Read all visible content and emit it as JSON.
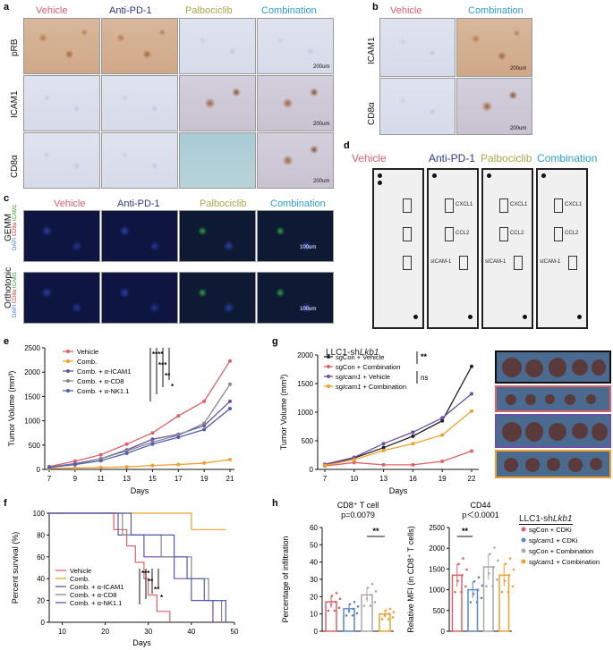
{
  "colors": {
    "vehicle": "#e0606a",
    "anti_pd1": "#2c3a86",
    "palbociclib": "#a8a84a",
    "combination": "#2e9ed6",
    "purple": "#6b4fa8",
    "grey": "#777777",
    "orange": "#f0a030"
  },
  "panels": {
    "a": {
      "label": "a",
      "columns": [
        "Vehicle",
        "Anti-PD-1",
        "Palbociclib",
        "Combination"
      ],
      "rows": [
        "pRB",
        "ICAM1",
        "CD8α"
      ],
      "scale": "200um"
    },
    "b": {
      "label": "b",
      "columns": [
        "Vehicle",
        "Combination"
      ],
      "rows": [
        "ICAM1",
        "CD8α"
      ],
      "scale": "200um"
    },
    "c": {
      "label": "c",
      "columns": [
        "Vehicle",
        "Anti-PD-1",
        "Palbociclib",
        "Combination"
      ],
      "rows": [
        "GEMM",
        "Orthotopic"
      ],
      "stain_dapi": "DAPI",
      "stain_cd8": "CD8α",
      "stain_icam": "ICAM1",
      "scale": "100um"
    },
    "d": {
      "label": "d",
      "columns": [
        "Vehicle",
        "Anti-PD-1",
        "Palbociclib",
        "Combination"
      ],
      "spots": [
        "CXCL1",
        "CCL2",
        "sICAM-1"
      ]
    },
    "e": {
      "label": "e"
    },
    "f": {
      "label": "f"
    },
    "g": {
      "label": "g",
      "title_prefix": "LLC1-sh",
      "title_gene": "Lkb1"
    },
    "h": {
      "label": "h",
      "legend_title_prefix": "LLC1-sh",
      "legend_title_gene": "Lkb1"
    }
  },
  "chart_data": [
    {
      "id": "e",
      "type": "line",
      "xlabel": "Days",
      "ylabel": "Tumor Volume (mm³)",
      "x": [
        7,
        9,
        11,
        13,
        15,
        17,
        19,
        21
      ],
      "ylim": [
        0,
        2500
      ],
      "yticks": [
        0,
        500,
        1000,
        1500,
        2000,
        2500
      ],
      "series": [
        {
          "name": "Vehicle",
          "color": "#e0606a",
          "values": [
            60,
            170,
            300,
            520,
            750,
            1100,
            1400,
            2230
          ]
        },
        {
          "name": "Comb.",
          "color": "#f0a030",
          "values": [
            20,
            30,
            40,
            50,
            80,
            100,
            130,
            200
          ]
        },
        {
          "name": "Comb. + α-ICAM1",
          "color": "#6b4fa8",
          "values": [
            50,
            120,
            220,
            400,
            620,
            720,
            900,
            1400
          ]
        },
        {
          "name": "Comb. + α-CD8",
          "color": "#888888",
          "values": [
            50,
            110,
            220,
            380,
            560,
            700,
            950,
            1750
          ]
        },
        {
          "name": "Comb. + α-NK1.1",
          "color": "#5060b0",
          "values": [
            40,
            100,
            180,
            330,
            520,
            660,
            820,
            1250
          ]
        }
      ],
      "significance": [
        "****",
        "***",
        "**",
        "*"
      ]
    },
    {
      "id": "f",
      "type": "line",
      "xlabel": "Days",
      "ylabel": "Percent survival (%)",
      "xticks": [
        10,
        20,
        30,
        40,
        50
      ],
      "yticks": [
        0,
        20,
        40,
        60,
        80,
        100
      ],
      "xlim": [
        7,
        50
      ],
      "ylim": [
        0,
        100
      ],
      "series": [
        {
          "name": "Vehicle",
          "color": "#e0606a",
          "steps": [
            [
              7,
              100
            ],
            [
              22,
              100
            ],
            [
              22,
              85
            ],
            [
              25,
              85
            ],
            [
              25,
              70
            ],
            [
              27,
              70
            ],
            [
              27,
              55
            ],
            [
              29,
              55
            ],
            [
              29,
              40
            ],
            [
              30,
              40
            ],
            [
              30,
              25
            ],
            [
              32,
              25
            ],
            [
              32,
              10
            ],
            [
              35,
              10
            ],
            [
              35,
              0
            ]
          ]
        },
        {
          "name": "Comb.",
          "color": "#f0a030",
          "steps": [
            [
              7,
              100
            ],
            [
              40,
              100
            ],
            [
              40,
              85
            ],
            [
              48,
              85
            ]
          ]
        },
        {
          "name": "Comb. + α-ICAM1",
          "color": "#6b4fa8",
          "steps": [
            [
              7,
              100
            ],
            [
              23,
              100
            ],
            [
              23,
              80
            ],
            [
              29,
              80
            ],
            [
              29,
              60
            ],
            [
              36,
              60
            ],
            [
              36,
              40
            ],
            [
              40,
              40
            ],
            [
              40,
              20
            ],
            [
              45,
              20
            ],
            [
              45,
              0
            ]
          ]
        },
        {
          "name": "Comb. + α-CD8",
          "color": "#888888",
          "steps": [
            [
              7,
              100
            ],
            [
              24,
              100
            ],
            [
              24,
              80
            ],
            [
              33,
              80
            ],
            [
              33,
              60
            ],
            [
              40,
              60
            ],
            [
              40,
              40
            ],
            [
              44,
              40
            ],
            [
              44,
              20
            ],
            [
              47,
              20
            ],
            [
              47,
              0
            ]
          ]
        },
        {
          "name": "Comb. + α-NK1.1",
          "color": "#5060b0",
          "steps": [
            [
              7,
              100
            ],
            [
              26,
              100
            ],
            [
              26,
              80
            ],
            [
              36,
              80
            ],
            [
              36,
              60
            ],
            [
              39,
              60
            ],
            [
              39,
              40
            ],
            [
              43,
              40
            ],
            [
              43,
              20
            ],
            [
              48,
              20
            ],
            [
              48,
              0
            ]
          ]
        }
      ],
      "significance": [
        "***",
        "**",
        "**",
        "*"
      ]
    },
    {
      "id": "g",
      "type": "line",
      "xlabel": "Days",
      "ylabel": "Tumor Volume (mm³)",
      "x": [
        7,
        10,
        13,
        16,
        19,
        22
      ],
      "ylim": [
        0,
        2000
      ],
      "yticks": [
        0,
        500,
        1000,
        1500,
        2000
      ],
      "series": [
        {
          "name": "sgCon + Vehicle",
          "color": "#222222",
          "values": [
            80,
            200,
            380,
            580,
            850,
            1800
          ]
        },
        {
          "name": "sgCon + Combination",
          "color": "#e0606a",
          "values": [
            60,
            120,
            80,
            80,
            140,
            320
          ]
        },
        {
          "name": "sgIcam1 + Vehicle",
          "color": "#6b4fa8",
          "values": [
            90,
            210,
            450,
            650,
            900,
            1320
          ]
        },
        {
          "name": "sgIcam1 + Combination",
          "color": "#f0a030",
          "values": [
            70,
            170,
            330,
            450,
            600,
            1020
          ]
        }
      ],
      "legend": [
        {
          "prefix": "sgCon + ",
          "italic": "",
          "suffix": "Vehicle"
        },
        {
          "prefix": "sgCon + ",
          "italic": "",
          "suffix": "Combination"
        },
        {
          "prefix": "sg",
          "italic": "Icam1",
          "suffix": " + Vehicle"
        },
        {
          "prefix": "sg",
          "italic": "Icam1",
          "suffix": " + Combination"
        }
      ],
      "significance": [
        "**",
        "ns"
      ]
    },
    {
      "id": "h1",
      "type": "bar",
      "title": "CD8⁺ T cell",
      "pvalue": "p=0.0079",
      "ylabel": "Percentage of infiltration",
      "ylim": [
        0,
        60
      ],
      "yticks": [
        0,
        10,
        20,
        30,
        40,
        50,
        60
      ],
      "categories": [
        "sgCon + CDKi",
        "sgIcam1 + CDKi",
        "sgCon + Combination",
        "sgIcam1 + Combination"
      ],
      "values": [
        17,
        13,
        21,
        10
      ],
      "colors": [
        "#e0606a",
        "#5b86c6",
        "#aaaaaa",
        "#f0a030"
      ],
      "significance": "**"
    },
    {
      "id": "h2",
      "type": "bar",
      "title": "CD44",
      "pvalue": "p＜0.0001",
      "ylabel": "Relative MFI (in CD8⁺ T cells)",
      "ylim": [
        0,
        2500
      ],
      "yticks": [
        0,
        500,
        1000,
        1500,
        2000,
        2500
      ],
      "categories": [
        "sgCon + CDKi",
        "sgIcam1 + CDKi",
        "sgCon + Combination",
        "sgIcam1 + Combination"
      ],
      "values": [
        1350,
        1000,
        1550,
        1350
      ],
      "colors": [
        "#e0606a",
        "#5b86c6",
        "#aaaaaa",
        "#f0a030"
      ],
      "significance": "**",
      "legend": [
        {
          "prefix": "sgCon + CDKi",
          "italic": "",
          "suffix": ""
        },
        {
          "prefix": "sg",
          "italic": "Icam1",
          "suffix": " + CDKi"
        },
        {
          "prefix": "sgCon + Combination",
          "italic": "",
          "suffix": ""
        },
        {
          "prefix": "sg",
          "italic": "Icam1",
          "suffix": " + Combination"
        }
      ]
    }
  ]
}
